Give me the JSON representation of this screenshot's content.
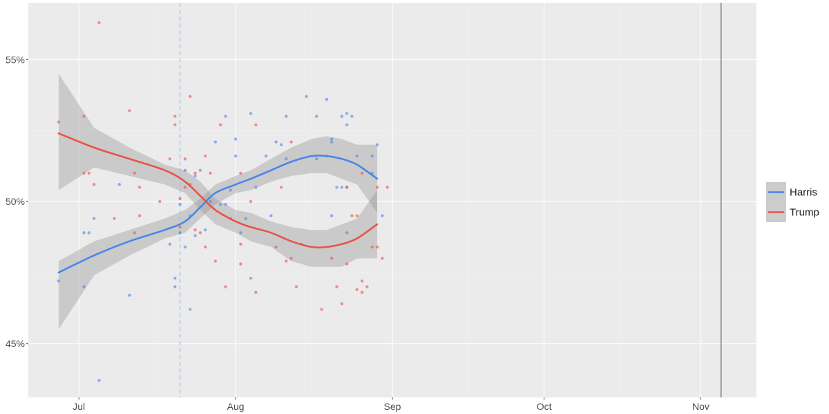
{
  "chart_data": {
    "type": "scatter",
    "title": "",
    "xlabel": "",
    "ylabel": "",
    "x_domain": [
      "2024-06-21",
      "2024-11-12"
    ],
    "y_domain": [
      0.431,
      0.57
    ],
    "x_ticks": [
      {
        "date": "2024-07-01",
        "label": "Jul"
      },
      {
        "date": "2024-08-01",
        "label": "Aug"
      },
      {
        "date": "2024-09-01",
        "label": "Sep"
      },
      {
        "date": "2024-10-01",
        "label": "Oct"
      },
      {
        "date": "2024-11-01",
        "label": "Nov"
      }
    ],
    "y_ticks": [
      {
        "value": 0.45,
        "label": "45%"
      },
      {
        "value": 0.5,
        "label": "50%"
      },
      {
        "value": 0.55,
        "label": "55%"
      }
    ],
    "grid": true,
    "legend_position": "right",
    "reference_lines": [
      {
        "date": "2024-07-21",
        "style": "dashed",
        "color": "#9db8f0"
      },
      {
        "date": "2024-11-05",
        "style": "solid",
        "color": "#808080"
      }
    ],
    "series": [
      {
        "name": "Harris",
        "color": "#4a86e8",
        "points": [
          [
            "2024-06-27",
            0.472
          ],
          [
            "2024-07-02",
            0.47
          ],
          [
            "2024-07-02",
            0.489
          ],
          [
            "2024-07-03",
            0.489
          ],
          [
            "2024-07-04",
            0.494
          ],
          [
            "2024-07-05",
            0.437
          ],
          [
            "2024-07-09",
            0.506
          ],
          [
            "2024-07-11",
            0.467
          ],
          [
            "2024-07-19",
            0.485
          ],
          [
            "2024-07-20",
            0.473
          ],
          [
            "2024-07-20",
            0.47
          ],
          [
            "2024-07-21",
            0.489
          ],
          [
            "2024-07-21",
            0.499
          ],
          [
            "2024-07-22",
            0.484
          ],
          [
            "2024-07-22",
            0.511
          ],
          [
            "2024-07-23",
            0.495
          ],
          [
            "2024-07-23",
            0.462
          ],
          [
            "2024-07-24",
            0.509
          ],
          [
            "2024-07-24",
            0.488
          ],
          [
            "2024-07-25",
            0.511
          ],
          [
            "2024-07-26",
            0.49
          ],
          [
            "2024-07-27",
            0.5
          ],
          [
            "2024-07-28",
            0.521
          ],
          [
            "2024-07-29",
            0.499
          ],
          [
            "2024-07-30",
            0.53
          ],
          [
            "2024-07-30",
            0.499
          ],
          [
            "2024-07-31",
            0.504
          ],
          [
            "2024-08-01",
            0.516
          ],
          [
            "2024-08-01",
            0.522
          ],
          [
            "2024-08-02",
            0.489
          ],
          [
            "2024-08-03",
            0.494
          ],
          [
            "2024-08-04",
            0.531
          ],
          [
            "2024-08-04",
            0.473
          ],
          [
            "2024-08-05",
            0.505
          ],
          [
            "2024-08-07",
            0.516
          ],
          [
            "2024-08-08",
            0.495
          ],
          [
            "2024-08-09",
            0.521
          ],
          [
            "2024-08-10",
            0.52
          ],
          [
            "2024-08-11",
            0.53
          ],
          [
            "2024-08-11",
            0.515
          ],
          [
            "2024-08-15",
            0.537
          ],
          [
            "2024-08-17",
            0.53
          ],
          [
            "2024-08-17",
            0.515
          ],
          [
            "2024-08-19",
            0.536
          ],
          [
            "2024-08-20",
            0.521
          ],
          [
            "2024-08-20",
            0.495
          ],
          [
            "2024-08-20",
            0.522
          ],
          [
            "2024-08-21",
            0.505
          ],
          [
            "2024-08-22",
            0.53
          ],
          [
            "2024-08-22",
            0.505
          ],
          [
            "2024-08-23",
            0.505
          ],
          [
            "2024-08-23",
            0.531
          ],
          [
            "2024-08-23",
            0.527
          ],
          [
            "2024-08-23",
            0.489
          ],
          [
            "2024-08-24",
            0.53
          ],
          [
            "2024-08-25",
            0.516
          ],
          [
            "2024-08-28",
            0.516
          ],
          [
            "2024-08-28",
            0.51
          ],
          [
            "2024-08-29",
            0.52
          ],
          [
            "2024-08-30",
            0.495
          ]
        ],
        "trend": [
          [
            "2024-06-27",
            0.475
          ],
          [
            "2024-07-04",
            0.481
          ],
          [
            "2024-07-11",
            0.486
          ],
          [
            "2024-07-18",
            0.49
          ],
          [
            "2024-07-22",
            0.493
          ],
          [
            "2024-07-25",
            0.498
          ],
          [
            "2024-07-28",
            0.503
          ],
          [
            "2024-08-01",
            0.506
          ],
          [
            "2024-08-04",
            0.508
          ],
          [
            "2024-08-08",
            0.511
          ],
          [
            "2024-08-12",
            0.514
          ],
          [
            "2024-08-16",
            0.516
          ],
          [
            "2024-08-19",
            0.516
          ],
          [
            "2024-08-22",
            0.515
          ],
          [
            "2024-08-25",
            0.513
          ],
          [
            "2024-08-29",
            0.508
          ]
        ],
        "band_upper": [
          0.479,
          0.486,
          0.49,
          0.494,
          0.497,
          0.501,
          0.506,
          0.509,
          0.511,
          0.515,
          0.519,
          0.522,
          0.523,
          0.522,
          0.52,
          0.52
        ],
        "band_lower": [
          0.455,
          0.474,
          0.481,
          0.487,
          0.489,
          0.494,
          0.499,
          0.503,
          0.504,
          0.507,
          0.509,
          0.51,
          0.51,
          0.508,
          0.506,
          0.496
        ]
      },
      {
        "name": "Trump",
        "color": "#e8534a",
        "points": [
          [
            "2024-06-27",
            0.528
          ],
          [
            "2024-07-02",
            0.51
          ],
          [
            "2024-07-02",
            0.53
          ],
          [
            "2024-07-03",
            0.51
          ],
          [
            "2024-07-04",
            0.506
          ],
          [
            "2024-07-05",
            0.563
          ],
          [
            "2024-07-08",
            0.494
          ],
          [
            "2024-07-11",
            0.532
          ],
          [
            "2024-07-12",
            0.51
          ],
          [
            "2024-07-12",
            0.489
          ],
          [
            "2024-07-13",
            0.495
          ],
          [
            "2024-07-13",
            0.505
          ],
          [
            "2024-07-17",
            0.5
          ],
          [
            "2024-07-19",
            0.515
          ],
          [
            "2024-07-20",
            0.527
          ],
          [
            "2024-07-20",
            0.53
          ],
          [
            "2024-07-21",
            0.501
          ],
          [
            "2024-07-21",
            0.491
          ],
          [
            "2024-07-22",
            0.505
          ],
          [
            "2024-07-22",
            0.515
          ],
          [
            "2024-07-23",
            0.537
          ],
          [
            "2024-07-23",
            0.506
          ],
          [
            "2024-07-24",
            0.51
          ],
          [
            "2024-07-24",
            0.49
          ],
          [
            "2024-07-25",
            0.489
          ],
          [
            "2024-07-26",
            0.516
          ],
          [
            "2024-07-26",
            0.484
          ],
          [
            "2024-07-27",
            0.51
          ],
          [
            "2024-07-28",
            0.479
          ],
          [
            "2024-07-29",
            0.527
          ],
          [
            "2024-07-30",
            0.47
          ],
          [
            "2024-07-31",
            0.494
          ],
          [
            "2024-08-02",
            0.51
          ],
          [
            "2024-08-02",
            0.485
          ],
          [
            "2024-08-02",
            0.478
          ],
          [
            "2024-08-04",
            0.5
          ],
          [
            "2024-08-05",
            0.527
          ],
          [
            "2024-08-05",
            0.468
          ],
          [
            "2024-08-09",
            0.484
          ],
          [
            "2024-08-10",
            0.505
          ],
          [
            "2024-08-11",
            0.479
          ],
          [
            "2024-08-12",
            0.521
          ],
          [
            "2024-08-12",
            0.48
          ],
          [
            "2024-08-13",
            0.47
          ],
          [
            "2024-08-14",
            0.485
          ],
          [
            "2024-08-18",
            0.462
          ],
          [
            "2024-08-19",
            0.516
          ],
          [
            "2024-08-20",
            0.48
          ],
          [
            "2024-08-21",
            0.47
          ],
          [
            "2024-08-22",
            0.464
          ],
          [
            "2024-08-23",
            0.505
          ],
          [
            "2024-08-23",
            0.478
          ],
          [
            "2024-08-24",
            0.495
          ],
          [
            "2024-08-25",
            0.469
          ],
          [
            "2024-08-25",
            0.495
          ],
          [
            "2024-08-26",
            0.472
          ],
          [
            "2024-08-26",
            0.468
          ],
          [
            "2024-08-26",
            0.51
          ],
          [
            "2024-08-27",
            0.47
          ],
          [
            "2024-08-28",
            0.484
          ],
          [
            "2024-08-29",
            0.505
          ],
          [
            "2024-08-29",
            0.484
          ],
          [
            "2024-08-30",
            0.48
          ],
          [
            "2024-08-31",
            0.505
          ]
        ],
        "trend": [
          [
            "2024-06-27",
            0.524
          ],
          [
            "2024-07-04",
            0.519
          ],
          [
            "2024-07-11",
            0.515
          ],
          [
            "2024-07-18",
            0.511
          ],
          [
            "2024-07-22",
            0.507
          ],
          [
            "2024-07-25",
            0.502
          ],
          [
            "2024-07-28",
            0.497
          ],
          [
            "2024-08-01",
            0.493
          ],
          [
            "2024-08-04",
            0.491
          ],
          [
            "2024-08-08",
            0.489
          ],
          [
            "2024-08-12",
            0.486
          ],
          [
            "2024-08-16",
            0.484
          ],
          [
            "2024-08-19",
            0.484
          ],
          [
            "2024-08-22",
            0.485
          ],
          [
            "2024-08-25",
            0.487
          ],
          [
            "2024-08-29",
            0.492
          ]
        ],
        "band_upper": [
          0.545,
          0.526,
          0.519,
          0.513,
          0.511,
          0.507,
          0.501,
          0.497,
          0.496,
          0.493,
          0.491,
          0.49,
          0.49,
          0.492,
          0.494,
          0.504
        ],
        "band_lower": [
          0.504,
          0.512,
          0.509,
          0.506,
          0.503,
          0.497,
          0.492,
          0.489,
          0.486,
          0.484,
          0.479,
          0.477,
          0.477,
          0.477,
          0.48,
          0.48
        ]
      }
    ]
  }
}
